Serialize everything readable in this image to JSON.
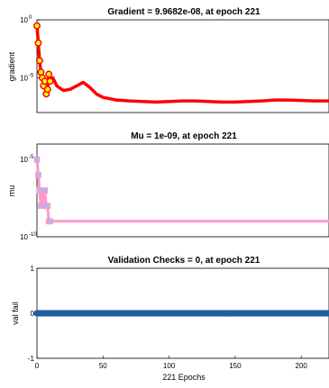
{
  "chart_data": [
    {
      "type": "line",
      "title": "Gradient = 9.9682e-08, at epoch 221",
      "ylabel": "gradient",
      "xlabel": "",
      "yscale": "log",
      "xlim": [
        0,
        221
      ],
      "ylim": [
        1e-08,
        1
      ],
      "yticks": [
        {
          "base": "10",
          "exp": "0",
          "value": 1
        },
        {
          "base": "10",
          "exp": "-5",
          "value": 1e-05
        }
      ],
      "grid": false,
      "color": "#ff0000",
      "marker_color": "#ffff00",
      "series": [
        {
          "x": [
            0,
            1,
            2,
            3,
            4,
            5,
            6,
            7,
            8,
            9,
            10,
            12,
            15,
            20,
            25,
            30,
            35,
            40,
            45,
            50,
            60,
            70,
            80,
            90,
            100,
            110,
            120,
            130,
            140,
            150,
            160,
            170,
            180,
            190,
            200,
            210,
            221
          ],
          "y": [
            0.3,
            0.01,
            0.0003,
            3e-05,
            1e-05,
            2e-06,
            5e-06,
            4e-07,
            1e-06,
            2e-05,
            5e-06,
            1e-05,
            2e-06,
            8e-07,
            1e-06,
            2e-06,
            4e-06,
            1.5e-06,
            4e-07,
            2e-07,
            1.2e-07,
            1e-07,
            9e-08,
            8e-08,
            9e-08,
            1e-07,
            1e-07,
            9e-08,
            8e-08,
            8e-08,
            9e-08,
            1e-07,
            1.2e-07,
            1.2e-07,
            1.1e-07,
            1e-07,
            9.9682e-08
          ],
          "markers_until": 10
        }
      ]
    },
    {
      "type": "line",
      "title": "Mu = 1e-09, at epoch 221",
      "ylabel": "mu",
      "xlabel": "",
      "yscale": "log",
      "xlim": [
        0,
        221
      ],
      "ylim": [
        1e-10,
        0.0001
      ],
      "yticks": [
        {
          "base": "10",
          "exp": "-5",
          "value": 1e-05
        },
        {
          "base": "10",
          "exp": "-10",
          "value": 1e-10
        }
      ],
      "grid": false,
      "color": "#ff99cc",
      "marker_color": "#88c8ff",
      "series": [
        {
          "x": [
            0,
            1,
            2,
            3,
            4,
            5,
            6,
            7,
            8,
            9,
            10,
            221
          ],
          "y": [
            1e-05,
            1e-06,
            1e-07,
            1e-08,
            1e-07,
            1e-08,
            1e-07,
            1e-08,
            1e-08,
            1e-09,
            1e-09,
            1e-09
          ],
          "markers_until": 10
        }
      ]
    },
    {
      "type": "line",
      "title": "Validation Checks = 0, at epoch 221",
      "ylabel": "val fail",
      "xlabel": "221 Epochs",
      "yscale": "linear",
      "xlim": [
        0,
        221
      ],
      "ylim": [
        -1,
        1
      ],
      "yticks": [
        {
          "base": "1",
          "exp": "",
          "value": 1
        },
        {
          "base": "0",
          "exp": "",
          "value": 0
        },
        {
          "base": "-1",
          "exp": "",
          "value": -1
        }
      ],
      "xticks": [
        0,
        50,
        100,
        150,
        200
      ],
      "grid": false,
      "color": "#1f5f9f",
      "marker_color": "#1f5f9f",
      "series": [
        {
          "x_range": [
            0,
            221
          ],
          "value": 0,
          "marker_every": 1
        }
      ]
    }
  ]
}
